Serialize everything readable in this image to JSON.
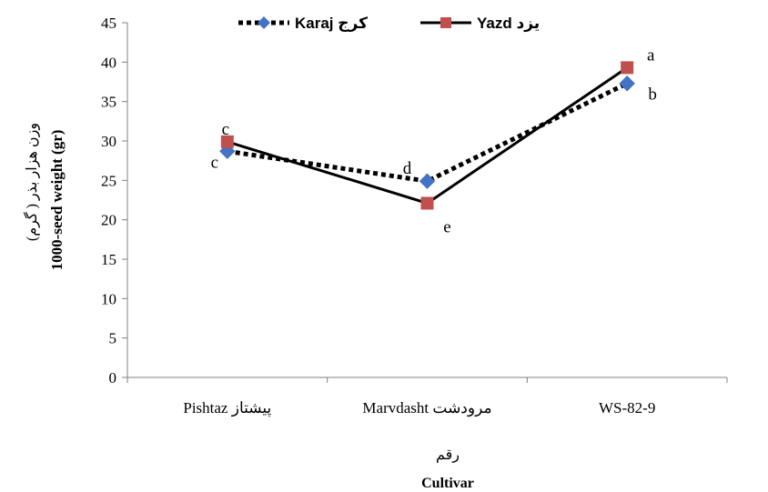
{
  "chart_data": {
    "type": "line",
    "categories": [
      "Pishtaz پیشتاز",
      "Marvdasht مرودشت",
      "WS-82-9"
    ],
    "series": [
      {
        "name": "Karaj کرج",
        "values": [
          28.7,
          24.9,
          37.3
        ],
        "labels": [
          "c",
          "d",
          "b"
        ],
        "color": "#4472C4",
        "line_color": "#000000",
        "line_style": "dotted",
        "marker": "diamond"
      },
      {
        "name": "Yazd یزد",
        "values": [
          29.9,
          22.1,
          39.3
        ],
        "labels": [
          "c",
          "e",
          "a"
        ],
        "color": "#C0504D",
        "line_color": "#000000",
        "line_style": "solid",
        "marker": "square"
      }
    ],
    "ylabel": "1000-seed weight (gr)",
    "ylabel_fa": "وزن هزار بذر ( گرم)",
    "xlabel": "Cultivar",
    "xlabel_fa": "رقم",
    "ylim": [
      0,
      45
    ],
    "yticks": [
      0,
      5,
      10,
      15,
      20,
      25,
      30,
      35,
      40,
      45
    ],
    "grid": false,
    "legend": "top"
  }
}
